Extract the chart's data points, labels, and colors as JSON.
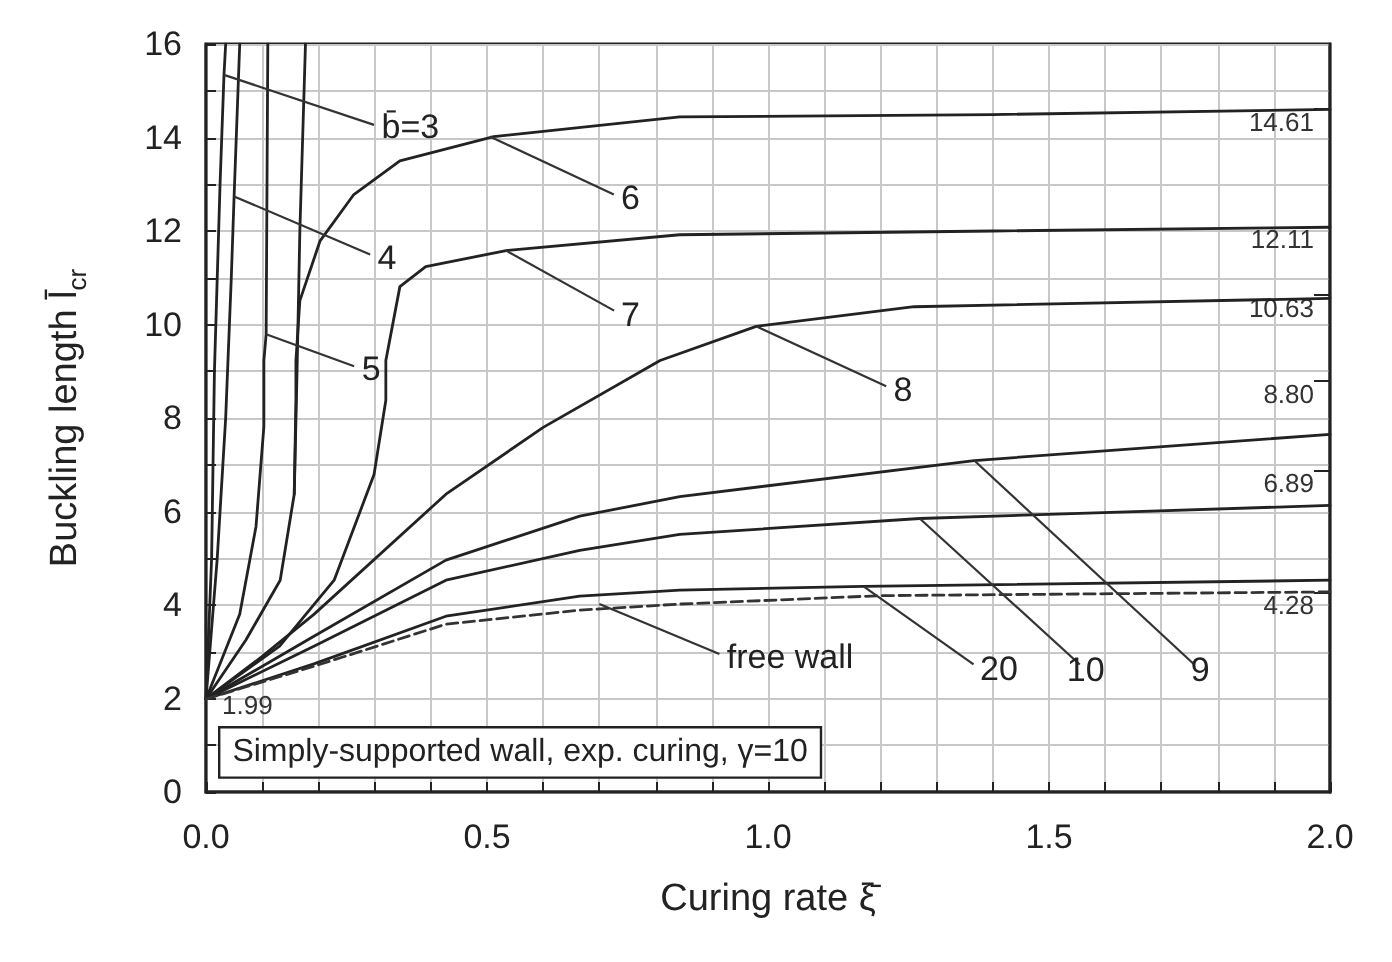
{
  "chart_data": {
    "type": "line",
    "xlabel": "Curing rate ξ̄",
    "ylabel": "Buckling length l̄$_{cr}$",
    "xlim": [
      0,
      2
    ],
    "ylim": [
      0,
      16
    ],
    "xticks": [
      {
        "value": 0,
        "label": "0.0"
      },
      {
        "value": 0.1,
        "label": null
      },
      {
        "value": 0.2,
        "label": null
      },
      {
        "value": 0.3,
        "label": null
      },
      {
        "value": 0.4,
        "label": null
      },
      {
        "value": 0.5,
        "label": "0.5"
      },
      {
        "value": 0.6,
        "label": null
      },
      {
        "value": 0.7,
        "label": null
      },
      {
        "value": 0.8,
        "label": null
      },
      {
        "value": 0.9,
        "label": null
      },
      {
        "value": 1,
        "label": "1.0"
      },
      {
        "value": 1.1,
        "label": null
      },
      {
        "value": 1.2,
        "label": null
      },
      {
        "value": 1.3,
        "label": null
      },
      {
        "value": 1.4,
        "label": null
      },
      {
        "value": 1.5,
        "label": "1.5"
      },
      {
        "value": 1.6,
        "label": null
      },
      {
        "value": 1.7,
        "label": null
      },
      {
        "value": 1.8,
        "label": null
      },
      {
        "value": 1.9,
        "label": null
      },
      {
        "value": 2,
        "label": "2.0"
      }
    ],
    "yticks": [
      0,
      {
        "value": 1,
        "label": null
      },
      2,
      {
        "value": 3,
        "label": null
      },
      4,
      {
        "value": 5,
        "label": null
      },
      6,
      {
        "value": 7,
        "label": null
      },
      8,
      {
        "value": 9,
        "label": null
      },
      10,
      {
        "value": 11,
        "label": null
      },
      12,
      {
        "value": 13,
        "label": null
      },
      14,
      {
        "value": 15,
        "label": null
      },
      16
    ],
    "y2lim": [
      0,
      16
    ],
    "y2ticks": [
      14.61,
      12.11,
      10.63,
      {
        "value": 8.8,
        "label": "8.80"
      },
      6.89,
      4.28
    ],
    "grid": true,
    "marker": "none",
    "series": [
      {
        "color": "#222222",
        "x": [
          0,
          0.01,
          0.015,
          0.025,
          0.032,
          0.035
        ],
        "values": [
          1.99,
          5,
          9,
          13,
          15.34,
          16
        ]
      },
      {
        "color": "#222222",
        "x": [
          0,
          0.02,
          0.035,
          0.045,
          0.05,
          0.06
        ],
        "values": [
          1.99,
          5,
          8,
          11,
          12.74,
          16
        ]
      },
      {
        "color": "#222222",
        "x": [
          0,
          0.06,
          0.089,
          0.103,
          0.103,
          0.107,
          0.11
        ],
        "values": [
          1.99,
          3.8,
          5.68,
          7.82,
          9.23,
          9.79,
          16
        ]
      },
      {
        "color": "#222222",
        "x": [
          0.157,
          0.162,
          0.167,
          0.172,
          0.177
        ],
        "values": [
          6.37,
          9,
          12,
          14,
          16
        ]
      },
      {
        "color": "#222222",
        "x": [
          0,
          0.071,
          0.132,
          0.157,
          0.16,
          0.16,
          0.167,
          0.203,
          0.263,
          0.345,
          0.512,
          0.843,
          1.4,
          2
        ],
        "values": [
          1.99,
          3.25,
          4.53,
          6.37,
          8.38,
          9.23,
          10.51,
          11.79,
          12.78,
          13.5,
          14.02,
          14.44,
          14.49,
          14.6
        ]
      },
      {
        "color": "#222222",
        "x": [
          0,
          0.131,
          0.228,
          0.299,
          0.32,
          0.32,
          0.345,
          0.391,
          0.534,
          0.843,
          1.4,
          2
        ],
        "values": [
          1.99,
          3.12,
          4.53,
          6.79,
          8.38,
          9.23,
          10.81,
          11.24,
          11.58,
          11.92,
          12,
          12.08
        ]
      },
      {
        "color": "#222222",
        "x": [
          0,
          0.1,
          0.192,
          0.427,
          0.6,
          0.808,
          0.979,
          1.26,
          2
        ],
        "values": [
          1.99,
          2.9,
          3.8,
          6.37,
          7.8,
          9.23,
          9.96,
          10.38,
          10.56
        ]
      },
      {
        "color": "#222222",
        "x": [
          0,
          0.192,
          0.427,
          0.665,
          0.843,
          1.367,
          2
        ],
        "values": [
          1.99,
          3.33,
          4.96,
          5.9,
          6.32,
          7.09,
          7.65
        ]
      },
      {
        "color": "#222222",
        "x": [
          0,
          0.192,
          0.427,
          0.665,
          0.843,
          1.27,
          2
        ],
        "values": [
          1.99,
          3.12,
          4.53,
          5.17,
          5.51,
          5.85,
          6.13
        ]
      },
      {
        "color": "#222222",
        "x": [
          0,
          0.192,
          0.427,
          0.665,
          0.843,
          1.17,
          2
        ],
        "values": [
          1.99,
          2.74,
          3.76,
          4.19,
          4.32,
          4.4,
          4.53
        ]
      },
      {
        "color": "#333333",
        "line_style": "dashed",
        "x": [
          0,
          0.192,
          0.427,
          0.665,
          0.843,
          1.2,
          2
        ],
        "values": [
          1.99,
          2.69,
          3.59,
          3.89,
          4.02,
          4.2,
          4.28
        ]
      }
    ],
    "annotations": [
      {
        "text": "b̄=3",
        "x": 0.032,
        "y": 15.34
      },
      {
        "text": "4",
        "x": 0.05,
        "y": 12.74
      },
      {
        "text": "5",
        "x": 0.107,
        "y": 9.79
      },
      {
        "text": "6",
        "x": 0.505,
        "y": 14.02
      },
      {
        "text": "7",
        "x": 0.534,
        "y": 11.58
      },
      {
        "text": "8",
        "x": 0.979,
        "y": 9.96
      },
      {
        "text": "9",
        "x": 1.367,
        "y": 7.09
      },
      {
        "text": "10",
        "x": 1.27,
        "y": 5.85
      },
      {
        "text": "20",
        "x": 1.17,
        "y": 4.4
      },
      {
        "text": "free wall",
        "x": 0.7,
        "y": 4.02
      },
      {
        "text": "1.99",
        "x": 0,
        "y": 1.99
      },
      "Simply-supported wall, exp. curing, γ=10"
    ]
  }
}
